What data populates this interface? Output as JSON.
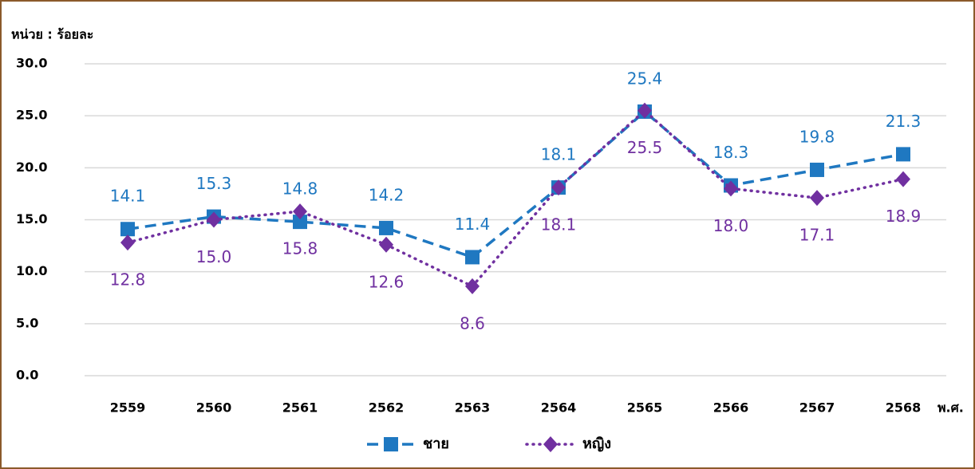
{
  "chart_data": {
    "type": "line",
    "y_label": "หน่วย : ร้อยละ",
    "x_label": "พ.ศ.",
    "categories": [
      "2559",
      "2560",
      "2561",
      "2562",
      "2563",
      "2564",
      "2565",
      "2566",
      "2567",
      "2568"
    ],
    "series": [
      {
        "name": "ชาย",
        "color": "#1f78c1",
        "values": [
          14.1,
          15.3,
          14.8,
          14.2,
          11.4,
          18.1,
          25.4,
          18.3,
          19.8,
          21.3
        ]
      },
      {
        "name": "หญิง",
        "color": "#7030a0",
        "values": [
          12.8,
          15.0,
          15.8,
          12.6,
          8.6,
          18.1,
          25.5,
          18.0,
          17.1,
          18.9
        ],
        "value_labels": [
          "12.8",
          "15.0",
          "15.8",
          "12.6",
          "8.6",
          "18.1",
          "25.5",
          "18.0",
          "17.1",
          "18.9"
        ]
      }
    ],
    "ylim": [
      0,
      30
    ],
    "yticks": [
      {
        "value": 0,
        "label": "0.0"
      },
      {
        "value": 5,
        "label": "5.0"
      },
      {
        "value": 10,
        "label": "10.0"
      },
      {
        "value": 15,
        "label": "15.0"
      },
      {
        "value": 20,
        "label": "20.0"
      },
      {
        "value": 25,
        "label": "25.0"
      },
      {
        "value": 30,
        "label": "30.0"
      }
    ],
    "grid": true,
    "legend": "bottom"
  }
}
